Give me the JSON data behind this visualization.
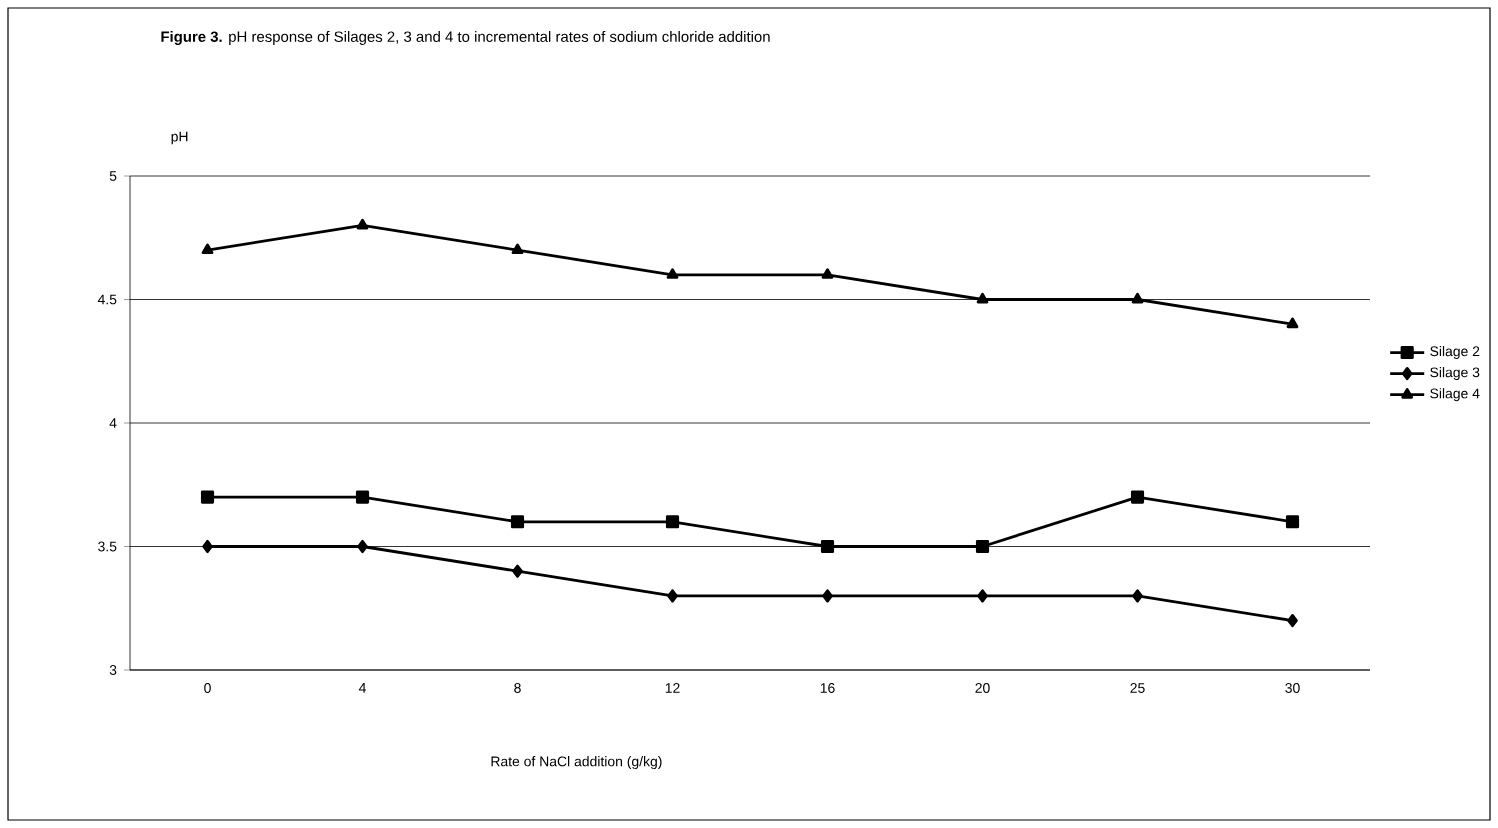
{
  "chart_data": {
    "type": "line",
    "title": "**Figure 3.** pH response of Silages 2, 3 and 4 to incremental rates of sodium chloride addition",
    "xlabel": "Rate of NaCl addition (g/kg)",
    "ylabel": "pH",
    "categories": [
      "0",
      "4",
      "8",
      "12",
      "16",
      "20",
      "25",
      "30"
    ],
    "series": [
      {
        "name": "Silage 2",
        "color": "#000000",
        "marker": "square",
        "values": [
          3.7,
          3.7,
          3.6,
          3.6,
          3.5,
          3.5,
          3.7,
          3.6
        ]
      },
      {
        "name": "Silage 3",
        "color": "#000000",
        "marker": "diamond",
        "values": [
          3.5,
          3.5,
          3.4,
          3.3,
          3.3,
          3.3,
          3.3,
          3.2
        ]
      },
      {
        "name": "Silage 4",
        "color": "#000000",
        "marker": "triangle",
        "values": [
          4.7,
          4.8,
          4.7,
          4.6,
          4.6,
          4.5,
          4.5,
          4.4
        ]
      }
    ],
    "ylim": [
      3,
      5
    ],
    "yticks": [
      3,
      3.5,
      4,
      4.5,
      5
    ],
    "grid": "y",
    "legend": "right",
    "line_style": "solid"
  }
}
